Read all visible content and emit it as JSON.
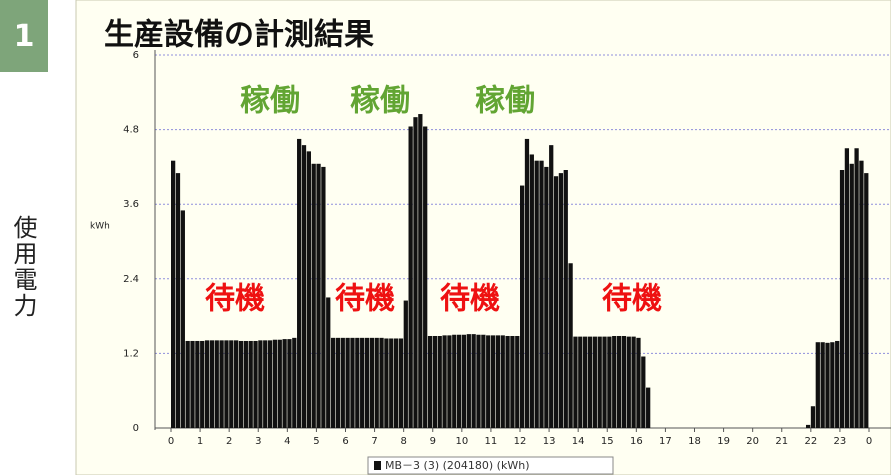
{
  "badge": "1",
  "side_label": "使用電力",
  "chart_data": {
    "type": "bar",
    "title": "生産設備の計測結果",
    "y_label": "kWh",
    "legend": "MB－3 (3) (204180) (kWh)",
    "series_color": "#111111",
    "grid": true,
    "xlim": [
      0,
      24
    ],
    "xticks": [
      0,
      1,
      2,
      3,
      4,
      5,
      6,
      7,
      8,
      9,
      10,
      11,
      12,
      13,
      14,
      15,
      16,
      17,
      18,
      19,
      20,
      21,
      22,
      23,
      {
        "value": 24,
        "label": "0"
      }
    ],
    "ylim": [
      0,
      6
    ],
    "yticks": [
      0,
      1.2,
      2.4,
      3.6,
      4.8,
      6
    ],
    "annotations": [
      {
        "text": "稼働",
        "color": "#62a533"
      },
      {
        "text": "稼働",
        "color": "#62a533"
      },
      {
        "text": "稼働",
        "color": "#62a533"
      },
      {
        "text": "待機",
        "color": "#ee1111"
      },
      {
        "text": "待機",
        "color": "#ee1111"
      },
      {
        "text": "待機",
        "color": "#ee1111"
      },
      {
        "text": "待機",
        "color": "#ee1111"
      }
    ],
    "values": [
      4.3,
      4.1,
      3.5,
      1.4,
      1.4,
      1.4,
      1.4,
      1.41,
      1.41,
      1.41,
      1.41,
      1.41,
      1.41,
      1.41,
      1.4,
      1.4,
      1.4,
      1.4,
      1.41,
      1.41,
      1.41,
      1.42,
      1.42,
      1.43,
      1.43,
      1.45,
      4.65,
      4.55,
      4.45,
      4.25,
      4.25,
      4.2,
      2.1,
      1.45,
      1.45,
      1.45,
      1.45,
      1.45,
      1.45,
      1.45,
      1.45,
      1.45,
      1.45,
      1.45,
      1.44,
      1.44,
      1.44,
      1.44,
      2.05,
      4.85,
      5.0,
      5.05,
      4.85,
      1.48,
      1.48,
      1.48,
      1.49,
      1.49,
      1.5,
      1.5,
      1.5,
      1.51,
      1.51,
      1.5,
      1.5,
      1.49,
      1.49,
      1.49,
      1.49,
      1.48,
      1.48,
      1.48,
      3.9,
      4.65,
      4.4,
      4.3,
      4.3,
      4.2,
      4.55,
      4.05,
      4.1,
      4.15,
      2.65,
      1.47,
      1.47,
      1.47,
      1.47,
      1.47,
      1.47,
      1.47,
      1.47,
      1.48,
      1.48,
      1.48,
      1.47,
      1.47,
      1.45,
      1.15,
      0.65,
      0,
      0,
      0,
      0,
      0,
      0,
      0,
      0,
      0,
      0,
      0,
      0,
      0,
      0,
      0,
      0,
      0,
      0,
      0,
      0,
      0,
      0,
      0,
      0,
      0,
      0,
      0,
      0,
      0,
      0,
      0,
      0,
      0.05,
      0.35,
      1.38,
      1.38,
      1.37,
      1.38,
      1.4,
      4.15,
      4.5,
      4.25,
      4.5,
      4.3,
      4.1
    ]
  }
}
